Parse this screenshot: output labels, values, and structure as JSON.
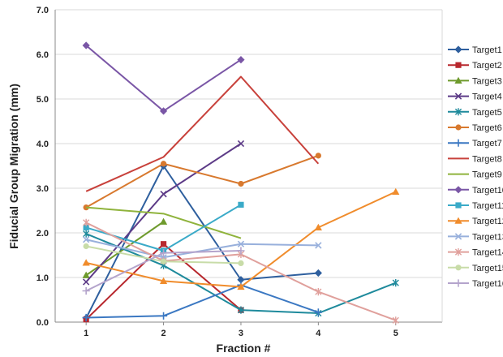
{
  "chart_data": {
    "type": "line",
    "xlabel": "Fraction #",
    "ylabel": "Fiducial Group Migration (mm)",
    "x_ticks": [
      "1",
      "2",
      "3",
      "4",
      "5"
    ],
    "y_ticks": [
      "0.0",
      "1.0",
      "2.0",
      "3.0",
      "4.0",
      "5.0",
      "6.0",
      "7.0"
    ],
    "xlim": [
      0.6,
      5.6
    ],
    "ylim": [
      0,
      7
    ],
    "grid": "horizontal",
    "legend": "right",
    "series": [
      {
        "name": "Target1",
        "color": "#2e5f9e",
        "marker": "diamond",
        "x": [
          1,
          2,
          3,
          4
        ],
        "y": [
          0.09,
          3.5,
          0.95,
          1.1
        ]
      },
      {
        "name": "Target2",
        "color": "#b8282e",
        "marker": "square",
        "x": [
          1,
          2,
          3
        ],
        "y": [
          0.06,
          1.75,
          0.27
        ]
      },
      {
        "name": "Target3",
        "color": "#6e9a2c",
        "marker": "triangle",
        "x": [
          1,
          2
        ],
        "y": [
          1.05,
          2.25
        ]
      },
      {
        "name": "Target4",
        "color": "#5d3b87",
        "marker": "x",
        "x": [
          1,
          2,
          3
        ],
        "y": [
          0.9,
          2.87,
          4.0
        ]
      },
      {
        "name": "Target5",
        "color": "#1e8a9c",
        "marker": "star",
        "x": [
          1,
          2,
          3,
          4,
          5
        ],
        "y": [
          1.98,
          1.27,
          0.27,
          0.2,
          0.88
        ]
      },
      {
        "name": "Target6",
        "color": "#d8792e",
        "marker": "circle",
        "x": [
          1,
          2,
          3,
          4
        ],
        "y": [
          2.57,
          3.55,
          3.1,
          3.73
        ]
      },
      {
        "name": "Target7",
        "color": "#3b78c2",
        "marker": "plus",
        "x": [
          1,
          2,
          3,
          4
        ],
        "y": [
          0.1,
          0.14,
          0.83,
          0.22
        ]
      },
      {
        "name": "Target8",
        "color": "#c8413b",
        "marker": "none",
        "x": [
          1,
          2,
          3,
          4
        ],
        "y": [
          2.93,
          3.7,
          5.5,
          3.55
        ]
      },
      {
        "name": "Target9",
        "color": "#8fb33c",
        "marker": "none",
        "x": [
          1,
          2,
          3
        ],
        "y": [
          2.57,
          2.43,
          1.88
        ]
      },
      {
        "name": "Target10",
        "color": "#7a56a6",
        "marker": "diamond",
        "x": [
          1,
          2,
          3
        ],
        "y": [
          6.2,
          4.73,
          5.88
        ]
      },
      {
        "name": "Target11",
        "color": "#3aaac8",
        "marker": "square",
        "x": [
          1,
          2,
          3
        ],
        "y": [
          2.12,
          1.6,
          2.63
        ]
      },
      {
        "name": "Target12",
        "color": "#f08c2c",
        "marker": "triangle",
        "x": [
          1,
          2,
          3,
          4,
          5
        ],
        "y": [
          1.33,
          0.92,
          0.79,
          2.12,
          2.92
        ]
      },
      {
        "name": "Target13",
        "color": "#98b0dc",
        "marker": "x",
        "x": [
          1,
          2,
          3,
          4
        ],
        "y": [
          1.85,
          1.45,
          1.75,
          1.72
        ]
      },
      {
        "name": "Target14",
        "color": "#e0a09c",
        "marker": "star",
        "x": [
          1,
          2,
          3,
          4,
          5
        ],
        "y": [
          2.23,
          1.37,
          1.52,
          0.68,
          0.04
        ]
      },
      {
        "name": "Target15",
        "color": "#c8dca8",
        "marker": "circle",
        "x": [
          1,
          2,
          3
        ],
        "y": [
          1.7,
          1.36,
          1.32
        ]
      },
      {
        "name": "Target16",
        "color": "#b4a4cc",
        "marker": "plus",
        "x": [
          1,
          2,
          3
        ],
        "y": [
          0.7,
          1.55,
          1.6
        ]
      }
    ]
  }
}
